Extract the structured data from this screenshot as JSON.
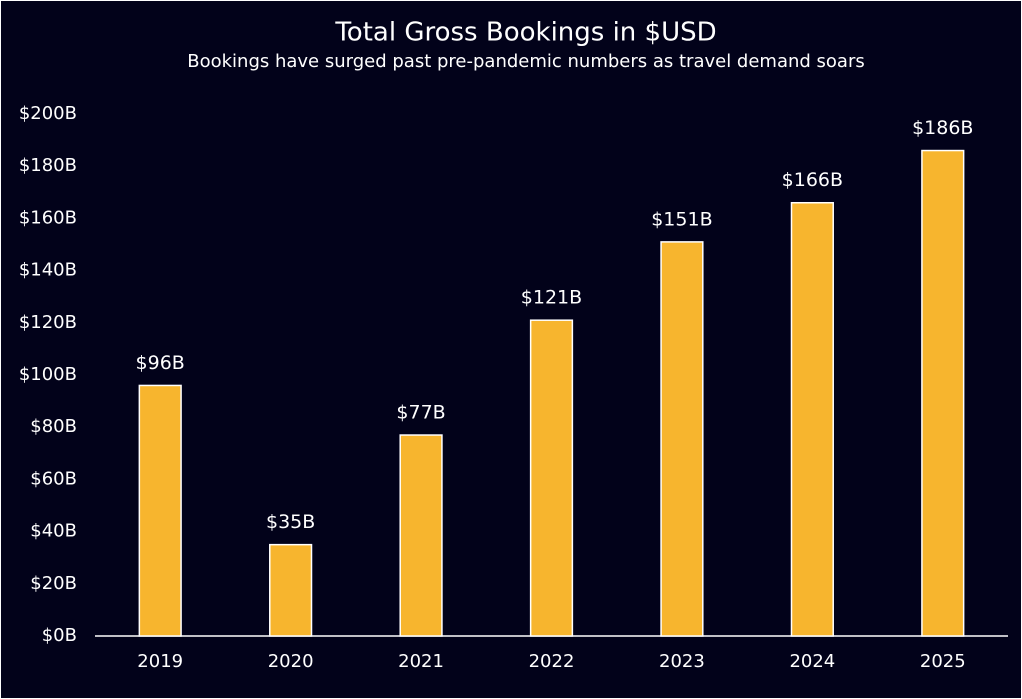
{
  "chart_data": {
    "type": "bar",
    "title": "Total Gross Bookings in $USD",
    "subtitle": "Bookings have surged past pre-pandemic numbers as travel demand soars",
    "categories": [
      "2019",
      "2020",
      "2021",
      "2022",
      "2023",
      "2024",
      "2025"
    ],
    "values": [
      96,
      35,
      77,
      121,
      151,
      166,
      186
    ],
    "value_labels": [
      "$96B",
      "$35B",
      "$77B",
      "$121B",
      "$151B",
      "$166B",
      "$186B"
    ],
    "color": "#f7b52e",
    "ylim": [
      0,
      200
    ],
    "yticks": [
      {
        "value": 0,
        "label": "$0B"
      },
      {
        "value": 20,
        "label": "$20B"
      },
      {
        "value": 40,
        "label": "$40B"
      },
      {
        "value": 60,
        "label": "$60B"
      },
      {
        "value": 80,
        "label": "$80B"
      },
      {
        "value": 100,
        "label": "$100B"
      },
      {
        "value": 120,
        "label": "$120B"
      },
      {
        "value": 140,
        "label": "$140B"
      },
      {
        "value": 160,
        "label": "$160B"
      },
      {
        "value": 180,
        "label": "$180B"
      },
      {
        "value": 200,
        "label": "$200B"
      }
    ],
    "grid": false
  }
}
